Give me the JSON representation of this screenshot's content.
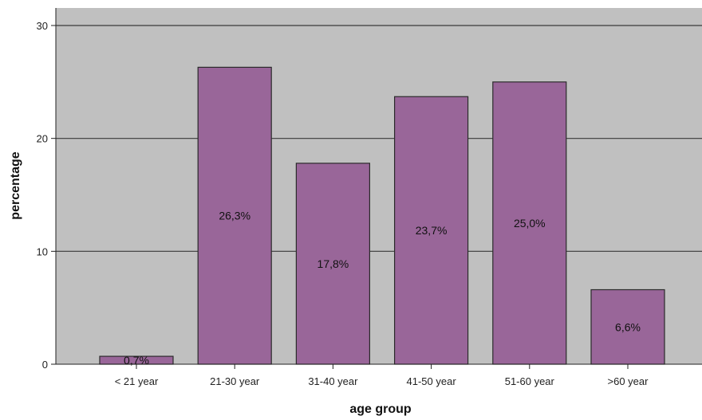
{
  "chart_data": {
    "type": "bar",
    "title": "",
    "xlabel": "age group",
    "ylabel": "percentage",
    "categories": [
      "< 21 year",
      "21-30 year",
      "31-40 year",
      "41-50 year",
      "51-60 year",
      ">60 year"
    ],
    "values": [
      0.7,
      26.3,
      17.8,
      23.7,
      25.0,
      6.6
    ],
    "data_labels": [
      "0,7%",
      "26,3%",
      "17,8%",
      "23,7%",
      "25,0%",
      "6,6%"
    ],
    "ylim": [
      0,
      30
    ],
    "yticks": [
      0,
      10,
      20,
      30
    ],
    "ytick_labels": [
      "0",
      "10",
      "20",
      "30"
    ],
    "grid": "horizontal",
    "legend": "none",
    "colors": {
      "bar_fill": "#996699",
      "bar_stroke": "#2b2b2b",
      "plot_background": "#c0c0c0",
      "gridline": "#3a3a3a",
      "axis": "#222222"
    }
  }
}
